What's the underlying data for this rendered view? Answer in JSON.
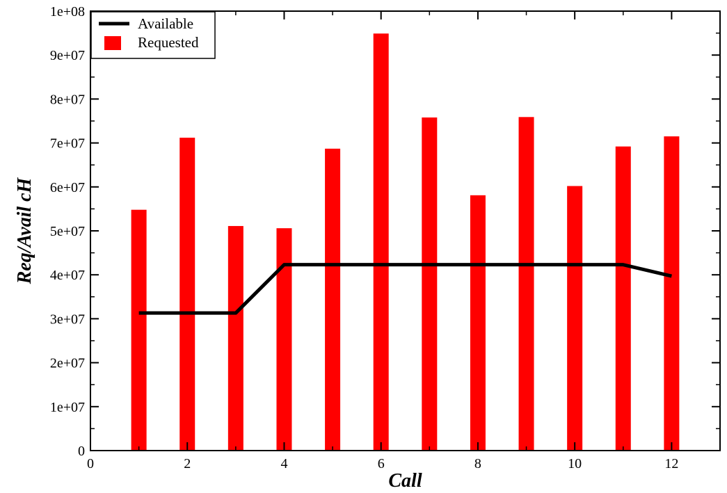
{
  "chart_data": {
    "type": "bar",
    "xlabel": "Call",
    "ylabel": "Req/Avail cH",
    "xlim": [
      0,
      13
    ],
    "ylim": [
      0,
      100000000
    ],
    "x_ticks": [
      0,
      2,
      4,
      6,
      8,
      10,
      12
    ],
    "x_tick_labels": [
      "0",
      "2",
      "4",
      "6",
      "8",
      "10",
      "12"
    ],
    "y_ticks": [
      0,
      10000000,
      20000000,
      30000000,
      40000000,
      50000000,
      60000000,
      70000000,
      80000000,
      90000000,
      100000000
    ],
    "y_tick_labels": [
      "0",
      "1e+07",
      "2e+07",
      "3e+07",
      "4e+07",
      "5e+07",
      "6e+07",
      "7e+07",
      "8e+07",
      "9e+07",
      "1e+08"
    ],
    "grid": false,
    "legend_position": "top-left",
    "series": [
      {
        "name": "Available",
        "kind": "line",
        "color": "#000000",
        "x": [
          1,
          2,
          3,
          4,
          5,
          6,
          7,
          8,
          9,
          10,
          11,
          12
        ],
        "values": [
          31300000,
          31300000,
          31300000,
          42300000,
          42300000,
          42300000,
          42300000,
          42300000,
          42300000,
          42300000,
          42300000,
          39700000
        ]
      },
      {
        "name": "Requested",
        "kind": "bar",
        "color": "#ff0000",
        "x": [
          1,
          2,
          3,
          4,
          5,
          6,
          7,
          8,
          9,
          10,
          11,
          12
        ],
        "values": [
          54800000,
          71200000,
          51100000,
          50600000,
          68700000,
          94900000,
          75800000,
          58100000,
          75900000,
          60200000,
          69200000,
          71500000
        ]
      }
    ]
  }
}
